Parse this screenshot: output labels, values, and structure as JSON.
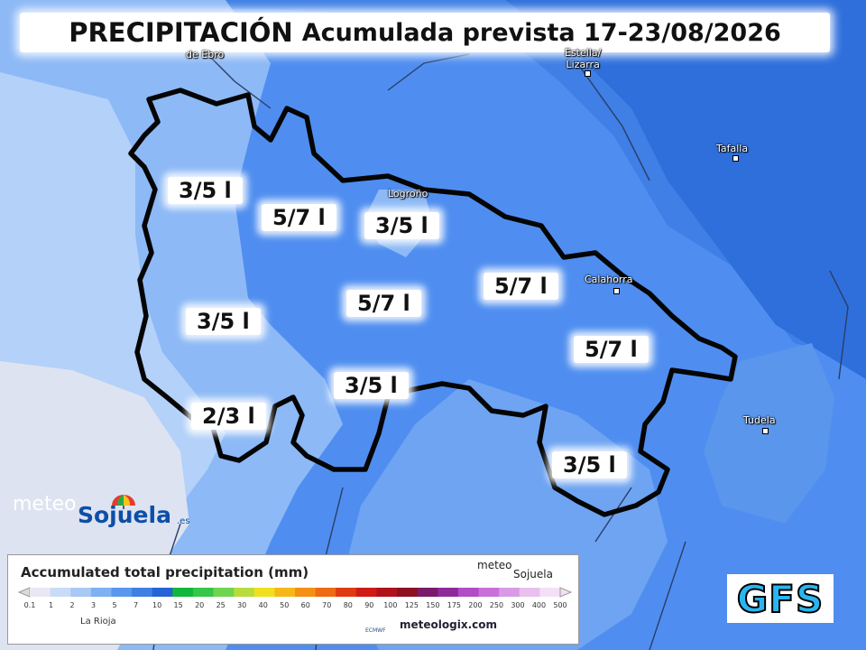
{
  "title": {
    "main": "PRECIPITACIÓN",
    "sub": "Acumulada prevista 17-23/08/2026"
  },
  "labels": [
    "3/5 l",
    "5/7 l",
    "3/5 l",
    "5/7 l",
    "5/7 l",
    "3/5 l",
    "5/7 l",
    "3/5 l",
    "2/3 l",
    "3/5 l"
  ],
  "towns": [
    "de Ebro",
    "Estella/\nLizarra",
    "Tafalla",
    "Logroño",
    "Calahorra",
    "Tudela"
  ],
  "logo": {
    "meteo": "meteo",
    "sojuela": "Sojuela",
    "tld": ".es"
  },
  "legend": {
    "title": "Accumulated total precipitation (mm)",
    "brand_meteo": "meteo",
    "brand_sojuela": "Sojuela",
    "region": "La Rioja",
    "source": "meteologix.com",
    "ecmwf": "ECMWF",
    "ticks": [
      "0.1",
      "1",
      "2",
      "3",
      "5",
      "7",
      "10",
      "15",
      "20",
      "25",
      "30",
      "40",
      "50",
      "60",
      "70",
      "80",
      "90",
      "100",
      "125",
      "150",
      "175",
      "200",
      "250",
      "300",
      "400",
      "500"
    ],
    "colors": [
      "#e8e8f4",
      "#c9dcf7",
      "#a8c8f5",
      "#7eb0f2",
      "#5a96ec",
      "#3f7fe3",
      "#2563d6",
      "#0fb83a",
      "#35c64a",
      "#6fd450",
      "#b8dc3a",
      "#f0e020",
      "#f6b818",
      "#f49016",
      "#ee6a14",
      "#e03a12",
      "#cf1a16",
      "#b0121a",
      "#8c1020",
      "#7a1a6a",
      "#8e2a98",
      "#b04cc4",
      "#c870d8",
      "#d89ae4",
      "#e8c0ee",
      "#f4e0f6"
    ]
  },
  "model": "GFS"
}
